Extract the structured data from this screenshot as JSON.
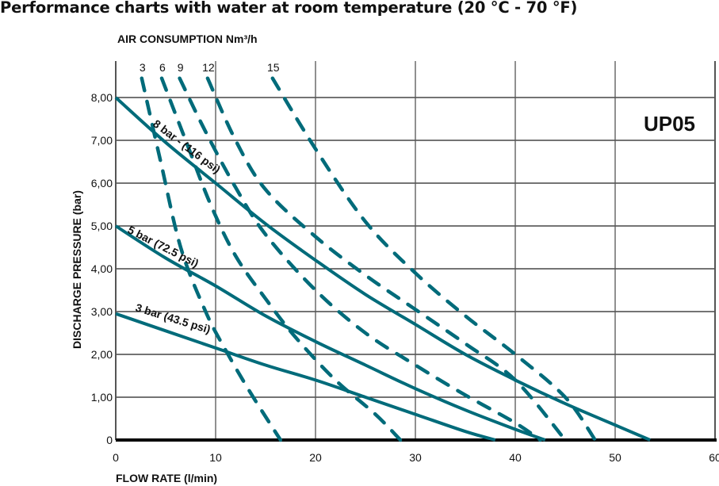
{
  "page": {
    "title": "Performance charts with water at room temperature (20 °C - 70 °F)"
  },
  "chart_data": {
    "type": "line",
    "title": "Performance charts with water at room temperature (20 °C - 70 °F)",
    "model_label": "UP05",
    "xlabel": "FLOW RATE (l/min)",
    "ylabel": "DISCHARGE PRESSURE (bar)",
    "top_label": "AIR CONSUMPTION Nm³/h",
    "xlim": [
      0,
      60
    ],
    "ylim": [
      0,
      8.5
    ],
    "x_ticks": [
      0,
      10,
      20,
      30,
      40,
      50,
      60
    ],
    "x_tick_labels": [
      "0",
      "10",
      "20",
      "30",
      "40",
      "50",
      "60"
    ],
    "y_ticks": [
      0,
      1,
      2,
      3,
      4,
      5,
      6,
      7,
      8
    ],
    "y_tick_labels": [
      "0",
      "1,00",
      "2,00",
      "3,00",
      "4,00",
      "5,00",
      "6,00",
      "7,00",
      "8,00"
    ],
    "grid": true,
    "color": "#006b7a",
    "series": [
      {
        "name": "8 bar - (116 psi)",
        "style": "solid",
        "points": [
          [
            0,
            8
          ],
          [
            5,
            6.95
          ],
          [
            10,
            6.0
          ],
          [
            15,
            5.05
          ],
          [
            20,
            4.2
          ],
          [
            25,
            3.4
          ],
          [
            30,
            2.7
          ],
          [
            35,
            2.0
          ],
          [
            40,
            1.4
          ],
          [
            45,
            0.85
          ],
          [
            50,
            0.35
          ],
          [
            53.5,
            0
          ]
        ]
      },
      {
        "name": "5 bar (72.5 psi)",
        "style": "solid",
        "points": [
          [
            0,
            5
          ],
          [
            5,
            4.25
          ],
          [
            10,
            3.6
          ],
          [
            15,
            2.9
          ],
          [
            20,
            2.3
          ],
          [
            25,
            1.75
          ],
          [
            30,
            1.2
          ],
          [
            35,
            0.7
          ],
          [
            40,
            0.25
          ],
          [
            43,
            0
          ]
        ]
      },
      {
        "name": "3 bar (43.5 psi)",
        "style": "solid",
        "points": [
          [
            0,
            2.95
          ],
          [
            5,
            2.55
          ],
          [
            10,
            2.15
          ],
          [
            15,
            1.75
          ],
          [
            20,
            1.4
          ],
          [
            25,
            1.0
          ],
          [
            30,
            0.6
          ],
          [
            35,
            0.2
          ],
          [
            38,
            0
          ]
        ]
      }
    ],
    "air_consumption_series": [
      {
        "name": "3",
        "style": "dashed",
        "points": [
          [
            2.6,
            8.45
          ],
          [
            4.5,
            6.5
          ],
          [
            6.5,
            4.5
          ],
          [
            9,
            3.0
          ],
          [
            11,
            2.1
          ],
          [
            13.5,
            1.1
          ],
          [
            16.5,
            0
          ]
        ]
      },
      {
        "name": "6",
        "style": "dashed",
        "points": [
          [
            4.6,
            8.45
          ],
          [
            7,
            7.0
          ],
          [
            9.5,
            5.5
          ],
          [
            12,
            4.3
          ],
          [
            15,
            3.3
          ],
          [
            18,
            2.4
          ],
          [
            22,
            1.4
          ],
          [
            26,
            0.6
          ],
          [
            28.5,
            0
          ]
        ]
      },
      {
        "name": "9",
        "style": "dashed",
        "points": [
          [
            6.4,
            8.45
          ],
          [
            9,
            7.2
          ],
          [
            12,
            5.9
          ],
          [
            15,
            4.8
          ],
          [
            20,
            3.5
          ],
          [
            25,
            2.5
          ],
          [
            30,
            1.75
          ],
          [
            35,
            1.05
          ],
          [
            40,
            0.4
          ],
          [
            42.5,
            0
          ]
        ]
      },
      {
        "name": "12",
        "style": "dashed",
        "points": [
          [
            9.2,
            8.45
          ],
          [
            12,
            7.0
          ],
          [
            15,
            5.85
          ],
          [
            20,
            4.75
          ],
          [
            25,
            3.85
          ],
          [
            30,
            3.05
          ],
          [
            35,
            2.25
          ],
          [
            40,
            1.4
          ],
          [
            45,
            0
          ]
        ]
      },
      {
        "name": "15",
        "style": "dashed",
        "points": [
          [
            15.7,
            8.45
          ],
          [
            20,
            6.8
          ],
          [
            25,
            5.1
          ],
          [
            30,
            3.9
          ],
          [
            35,
            2.9
          ],
          [
            40,
            2.0
          ],
          [
            45,
            1.0
          ],
          [
            48,
            0
          ]
        ]
      }
    ]
  }
}
